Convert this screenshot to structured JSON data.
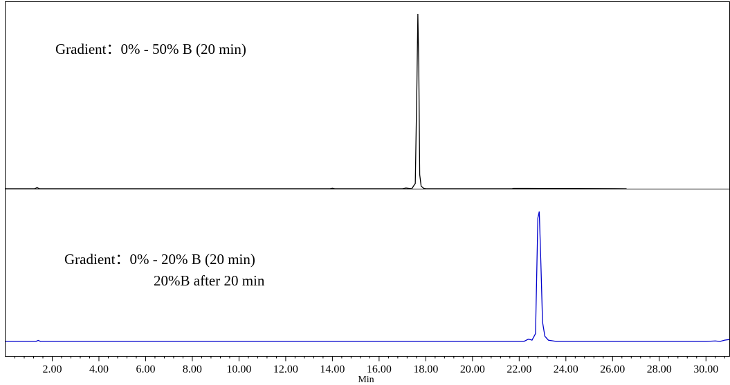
{
  "chart_data": {
    "type": "line",
    "xlabel": "Min",
    "ylabel": "",
    "xlim": [
      0.0,
      31.0
    ],
    "x_major_ticks": [
      2,
      4,
      6,
      8,
      10,
      12,
      14,
      16,
      18,
      20,
      22,
      24,
      26,
      28,
      30
    ],
    "x_tick_labels": [
      "2.00",
      "4.00",
      "6.00",
      "8.00",
      "10.00",
      "12.00",
      "14.00",
      "16.00",
      "18.00",
      "20.00",
      "22.00",
      "24.00",
      "26.00",
      "28.00",
      "30.00"
    ],
    "x_minor_step": 0.4,
    "grid": false,
    "legend": "none",
    "panels": [
      {
        "annotation": [
          "Gradient：0% - 50% B (20 min)"
        ],
        "color": "#000000",
        "x_end": 26.6,
        "ylim": [
          0.0,
          1.0
        ],
        "points": [
          [
            0.0,
            0.0
          ],
          [
            1.25,
            0.0
          ],
          [
            1.35,
            0.006
          ],
          [
            1.45,
            0.0
          ],
          [
            13.9,
            0.0
          ],
          [
            14.0,
            0.003
          ],
          [
            14.1,
            0.0
          ],
          [
            17.0,
            0.0
          ],
          [
            17.15,
            0.004
          ],
          [
            17.4,
            0.0
          ],
          [
            17.55,
            0.03
          ],
          [
            17.62,
            0.6
          ],
          [
            17.66,
            1.0
          ],
          [
            17.7,
            0.7
          ],
          [
            17.74,
            0.08
          ],
          [
            17.8,
            0.015
          ],
          [
            17.9,
            0.003
          ],
          [
            18.0,
            0.0
          ],
          [
            21.7,
            0.0
          ],
          [
            21.75,
            0.002
          ],
          [
            26.6,
            0.0
          ]
        ]
      },
      {
        "annotation": [
          "Gradient：0% - 20% B (20 min)",
          "20%B after 20 min"
        ],
        "color": "#0000cc",
        "x_end": 31.0,
        "ylim": [
          0.0,
          1.0
        ],
        "points": [
          [
            0.0,
            0.0
          ],
          [
            1.3,
            0.0
          ],
          [
            1.4,
            0.008
          ],
          [
            1.5,
            0.0
          ],
          [
            22.2,
            0.0
          ],
          [
            22.4,
            0.018
          ],
          [
            22.55,
            0.01
          ],
          [
            22.7,
            0.06
          ],
          [
            22.8,
            0.95
          ],
          [
            22.86,
            1.0
          ],
          [
            22.93,
            0.6
          ],
          [
            23.0,
            0.15
          ],
          [
            23.1,
            0.04
          ],
          [
            23.25,
            0.01
          ],
          [
            23.6,
            0.0
          ],
          [
            24.0,
            0.0
          ],
          [
            30.0,
            0.0
          ],
          [
            30.4,
            0.004
          ],
          [
            30.6,
            0.0
          ],
          [
            30.8,
            0.01
          ],
          [
            31.0,
            0.015
          ]
        ]
      }
    ]
  }
}
